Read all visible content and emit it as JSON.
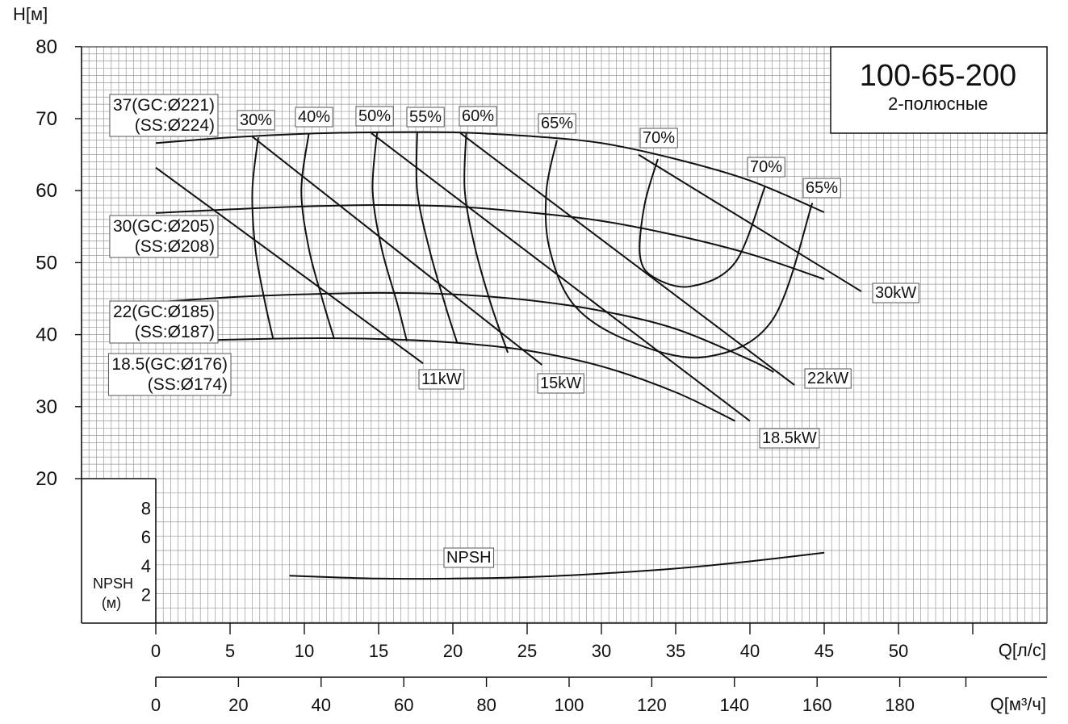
{
  "chart_data": {
    "type": "line",
    "title": "100-65-200",
    "subtitle": "2-полюсные",
    "ylabel": "H[м]",
    "xlabel": "Q[л/с]",
    "xlabel2": "Q[м³/ч]",
    "npsh_label": "NPSH",
    "npsh_unit": "(м)",
    "x_ticks": [
      "0",
      "5",
      "10",
      "15",
      "20",
      "25",
      "30",
      "35",
      "40",
      "45",
      "50"
    ],
    "x2_ticks": [
      "0",
      "20",
      "40",
      "60",
      "80",
      "100",
      "120",
      "140",
      "160",
      "180"
    ],
    "y_ticks": [
      "20",
      "30",
      "40",
      "50",
      "60",
      "70",
      "80"
    ],
    "npsh_ticks": [
      "2",
      "4",
      "6",
      "8"
    ],
    "xlim": [
      0,
      60
    ],
    "x2lim": [
      0,
      198
    ],
    "ylim": [
      20,
      80
    ],
    "npsh_lim": [
      0,
      10
    ],
    "head_curves": [
      {
        "name": "37",
        "label1": "37(GC:Ø221)",
        "label2": "(SS:Ø224)",
        "x": [
          0,
          5,
          10,
          15,
          20,
          25,
          30,
          35,
          40,
          45
        ],
        "y": [
          66.6,
          67.4,
          67.9,
          68.1,
          68.1,
          67.6,
          66.6,
          64.4,
          61.4,
          57.0
        ]
      },
      {
        "name": "30",
        "label1": "30(GC:Ø205)",
        "label2": "(SS:Ø208)",
        "x": [
          0,
          5,
          10,
          15,
          20,
          25,
          30,
          35,
          40,
          45
        ],
        "y": [
          56.9,
          57.4,
          57.8,
          58.0,
          57.8,
          57.0,
          55.8,
          53.8,
          51.2,
          47.7
        ]
      },
      {
        "name": "22",
        "label1": "22(GC:Ø185)",
        "label2": "(SS:Ø187)",
        "x": [
          0,
          5,
          10,
          15,
          20,
          25,
          30,
          35,
          40,
          41.6
        ],
        "y": [
          44.5,
          45.2,
          45.6,
          45.8,
          45.6,
          44.8,
          43.3,
          40.8,
          36.5,
          34.8
        ]
      },
      {
        "name": "18.5",
        "label1": "18.5(GC:Ø176)",
        "label2": "(SS:Ø174)",
        "x": [
          0,
          5,
          10,
          15,
          20,
          25,
          30,
          35,
          39
        ],
        "y": [
          39.0,
          39.3,
          39.5,
          39.4,
          38.9,
          37.8,
          35.6,
          32.0,
          28.0
        ]
      }
    ],
    "power_lines": [
      {
        "label": "11kW",
        "x": [
          0,
          18
        ],
        "y": [
          63.2,
          36.0
        ]
      },
      {
        "label": "15kW",
        "x": [
          6.5,
          26
        ],
        "y": [
          67.5,
          35.8
        ]
      },
      {
        "label": "18.5kW",
        "x": [
          14.5,
          40
        ],
        "y": [
          68.0,
          28.0
        ]
      },
      {
        "label": "22kW",
        "x": [
          20.5,
          43
        ],
        "y": [
          68.0,
          33.0
        ]
      },
      {
        "label": "30kW",
        "x": [
          32.5,
          47.5
        ],
        "y": [
          65.0,
          46.0
        ]
      }
    ],
    "efficiency_curves": [
      {
        "label": "30%",
        "x": [
          6.9,
          6.5,
          6.7,
          7.3,
          7.9
        ],
        "y": [
          67.4,
          60,
          52,
          45,
          39.4
        ]
      },
      {
        "label": "40%",
        "x": [
          10.3,
          9.8,
          10.3,
          11.2,
          12.0
        ],
        "y": [
          67.9,
          60,
          52,
          45,
          39.5
        ]
      },
      {
        "label": "50%",
        "x": [
          14.9,
          14.6,
          15.2,
          16.3,
          16.9
        ],
        "y": [
          68.1,
          60,
          52,
          44,
          39.1
        ]
      },
      {
        "label": "55%",
        "x": [
          17.6,
          17.6,
          18.4,
          19.5,
          20.3
        ],
        "y": [
          68.1,
          60,
          52,
          44,
          38.8
        ]
      },
      {
        "label": "60%",
        "x": [
          20.9,
          20.8,
          21.5,
          22.6,
          23.7
        ],
        "y": [
          68.1,
          60,
          52,
          44,
          37.5
        ]
      },
      {
        "label": "65%",
        "x": [
          27.0,
          26.3,
          26.5,
          28.2,
          32.0,
          37.0,
          41.5,
          44.2
        ],
        "y": [
          67.0,
          60,
          52,
          44,
          39,
          36.9,
          42,
          58.3
        ]
      },
      {
        "label": "70%",
        "x": [
          33.8,
          32.9,
          32.6,
          33.5,
          36.0,
          39.0,
          41.0
        ],
        "y": [
          64.4,
          58,
          51,
          48,
          46.7,
          50,
          60.5
        ]
      }
    ],
    "efficiency_tags": [
      "30%",
      "40%",
      "50%",
      "55%",
      "60%",
      "65%",
      "70%",
      "70%",
      "65%"
    ],
    "npsh_curve": {
      "x": [
        9,
        15,
        20,
        25,
        30,
        35,
        40,
        45
      ],
      "y": [
        3.3,
        3.1,
        3.1,
        3.2,
        3.45,
        3.8,
        4.3,
        4.9
      ]
    }
  }
}
